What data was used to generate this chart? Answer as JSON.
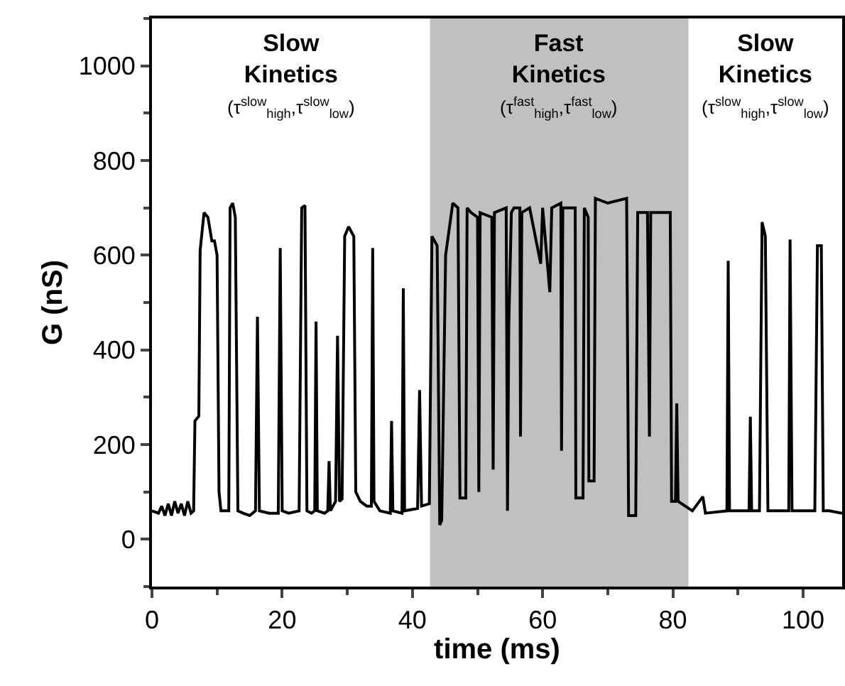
{
  "chart_data": {
    "type": "line",
    "xlabel": "time (ms)",
    "ylabel": "G (nS)",
    "xlim": [
      0,
      106
    ],
    "ylim": [
      -100,
      1100
    ],
    "xticks": [
      0,
      20,
      40,
      60,
      80,
      100
    ],
    "yticks": [
      0,
      200,
      400,
      600,
      800,
      1000
    ],
    "grid": false,
    "marker": "none",
    "line_style": "solid",
    "bands": [
      {
        "axis": "x",
        "from": 42.7,
        "to": 82.4,
        "color": "#c0c0c0",
        "label": "Fast\nKinetics\n(τ$^{fast}$$_{high}$,τ$^{fast}$$_{low}$)"
      }
    ],
    "annotations": [
      "Slow\nKinetics\n(τ$^{slow}$$_{high}$,τ$^{slow}$$_{low}$)",
      "Slow\nKinetics\n(τ$^{slow}$$_{high}$,τ$^{slow}$$_{low}$)"
    ],
    "series": [
      {
        "color": "#000000",
        "x": [
          0,
          1,
          1.5,
          2,
          2.5,
          3,
          3.5,
          4,
          4.5,
          5,
          5.5,
          6,
          6.4,
          6.6,
          7.2,
          7.4,
          8,
          8.6,
          9.2,
          9.6,
          10,
          10.3,
          10.6,
          11.8,
          12,
          12.4,
          12.8,
          13.2,
          14,
          15,
          15.9,
          16.2,
          16.5,
          18,
          19.4,
          19.7,
          20,
          21,
          22.6,
          23,
          23.5,
          23.8,
          24.5,
          25,
          25.2,
          25.4,
          26.5,
          27,
          27.2,
          27.4,
          28.2,
          28.5,
          28.8,
          29.2,
          29.6,
          30.2,
          31,
          31.3,
          32,
          33,
          33.7,
          33.9,
          34.1,
          35,
          36.6,
          36.8,
          37,
          38.4,
          38.6,
          38.8,
          40.8,
          41.1,
          41.4,
          42.6,
          43,
          43.8,
          44.2,
          44.5,
          45.1,
          46.2,
          47,
          47.3,
          48.2,
          48.4,
          49,
          50,
          50.2,
          50.4,
          52.2,
          52.4,
          52.6,
          54.4,
          54.6,
          54.8,
          55.2,
          55.6,
          56.5,
          56.6,
          56.8,
          58,
          59.7,
          60,
          61.1,
          61.4,
          62.8,
          62.9,
          63.1,
          65,
          65.1,
          66.2,
          66.4,
          67,
          67.1,
          67.9,
          68.1,
          70,
          72.9,
          73.2,
          74.3,
          74.6,
          76.1,
          76.4,
          76.6,
          79.6,
          79.8,
          80.4,
          80.6,
          80.8,
          83,
          84.6,
          85,
          88.3,
          88.5,
          88.7,
          91.7,
          91.9,
          92.1,
          93.3,
          93.7,
          94.2,
          94.6,
          94.9,
          97.8,
          98,
          98.3,
          101.8,
          102.2,
          102.8,
          103.1,
          104,
          106
        ],
        "values": [
          60,
          55,
          70,
          50,
          75,
          50,
          80,
          55,
          75,
          50,
          80,
          55,
          60,
          250,
          260,
          610,
          690,
          680,
          630,
          630,
          600,
          100,
          60,
          60,
          700,
          710,
          680,
          60,
          55,
          50,
          60,
          470,
          60,
          55,
          55,
          615,
          60,
          55,
          60,
          700,
          705,
          60,
          55,
          60,
          460,
          60,
          55,
          60,
          165,
          60,
          80,
          430,
          80,
          85,
          640,
          660,
          640,
          100,
          80,
          70,
          70,
          615,
          80,
          60,
          55,
          250,
          60,
          55,
          530,
          60,
          65,
          315,
          70,
          75,
          640,
          620,
          30,
          40,
          600,
          710,
          700,
          87,
          87,
          700,
          690,
          680,
          100,
          690,
          680,
          147,
          690,
          700,
          60,
          450,
          690,
          700,
          700,
          217,
          690,
          700,
          582,
          700,
          522,
          700,
          710,
          187,
          700,
          700,
          87,
          87,
          700,
          680,
          123,
          123,
          720,
          710,
          720,
          50,
          50,
          690,
          690,
          217,
          690,
          690,
          80,
          80,
          287,
          80,
          60,
          90,
          55,
          60,
          588,
          60,
          60,
          259,
          60,
          60,
          670,
          640,
          60,
          60,
          60,
          633,
          60,
          60,
          620,
          620,
          60,
          60,
          55
        ]
      }
    ]
  }
}
